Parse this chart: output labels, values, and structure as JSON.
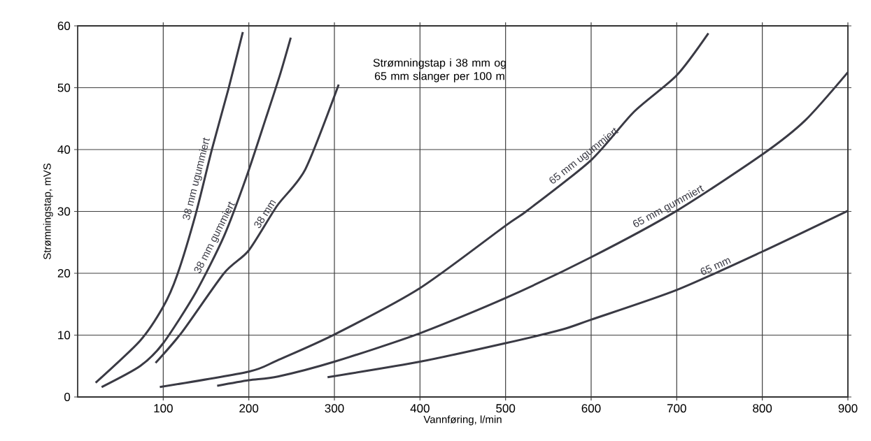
{
  "chart_data": {
    "type": "line",
    "title": "Strømningstap i 38 mm og 65 mm slanger per 100 m",
    "xlabel": "Vannføring, l/min",
    "ylabel": "Strømningstap, mVS",
    "xlim": [
      0,
      900
    ],
    "ylim": [
      0,
      60
    ],
    "xticks": [
      100,
      200,
      300,
      400,
      500,
      600,
      700,
      800,
      900
    ],
    "yticks": [
      0,
      10,
      20,
      30,
      40,
      50,
      60
    ],
    "grid": true,
    "series": [
      {
        "name": "38 mm ugummiert",
        "color": "#3a3a44",
        "x": [
          21,
          73,
          100,
          116,
          138,
          157,
          176,
          193
        ],
        "values": [
          2.3,
          9.1,
          14.6,
          19.6,
          29.6,
          40.1,
          49.7,
          59
        ]
      },
      {
        "name": "38 mm gummiert",
        "color": "#3a3a44",
        "x": [
          28,
          73,
          100,
          138,
          171,
          197,
          220,
          236,
          249
        ],
        "values": [
          1.6,
          5,
          8.7,
          16.9,
          26,
          35.5,
          45.1,
          51.9,
          58.1
        ]
      },
      {
        "name": "38 mm",
        "color": "#3a3a44",
        "x": [
          91,
          122,
          171,
          200,
          233,
          266,
          305
        ],
        "values": [
          5.5,
          10.5,
          20,
          23.7,
          30.9,
          36.8,
          50.5
        ]
      },
      {
        "name": "65 mm ugummiert",
        "color": "#3a3a44",
        "x": [
          96,
          200,
          233,
          300,
          400,
          500,
          526,
          600,
          650,
          700,
          737
        ],
        "values": [
          1.6,
          4.1,
          5.9,
          10.1,
          17.6,
          27.7,
          30.2,
          38.3,
          46.1,
          52,
          58.8
        ]
      },
      {
        "name": "65 mm gummiert",
        "color": "#3a3a44",
        "x": [
          163,
          200,
          234,
          300,
          400,
          500,
          600,
          700,
          800,
          850,
          900
        ],
        "values": [
          1.8,
          2.7,
          3.3,
          5.7,
          10.3,
          16,
          22.6,
          30.1,
          39.2,
          44.7,
          52.5
        ]
      },
      {
        "name": "65 mm",
        "color": "#3a3a44",
        "x": [
          292,
          400,
          500,
          566,
          600,
          700,
          800,
          900
        ],
        "values": [
          3.2,
          5.7,
          8.7,
          10.9,
          12.5,
          17.3,
          23.5,
          30.1
        ]
      }
    ]
  }
}
